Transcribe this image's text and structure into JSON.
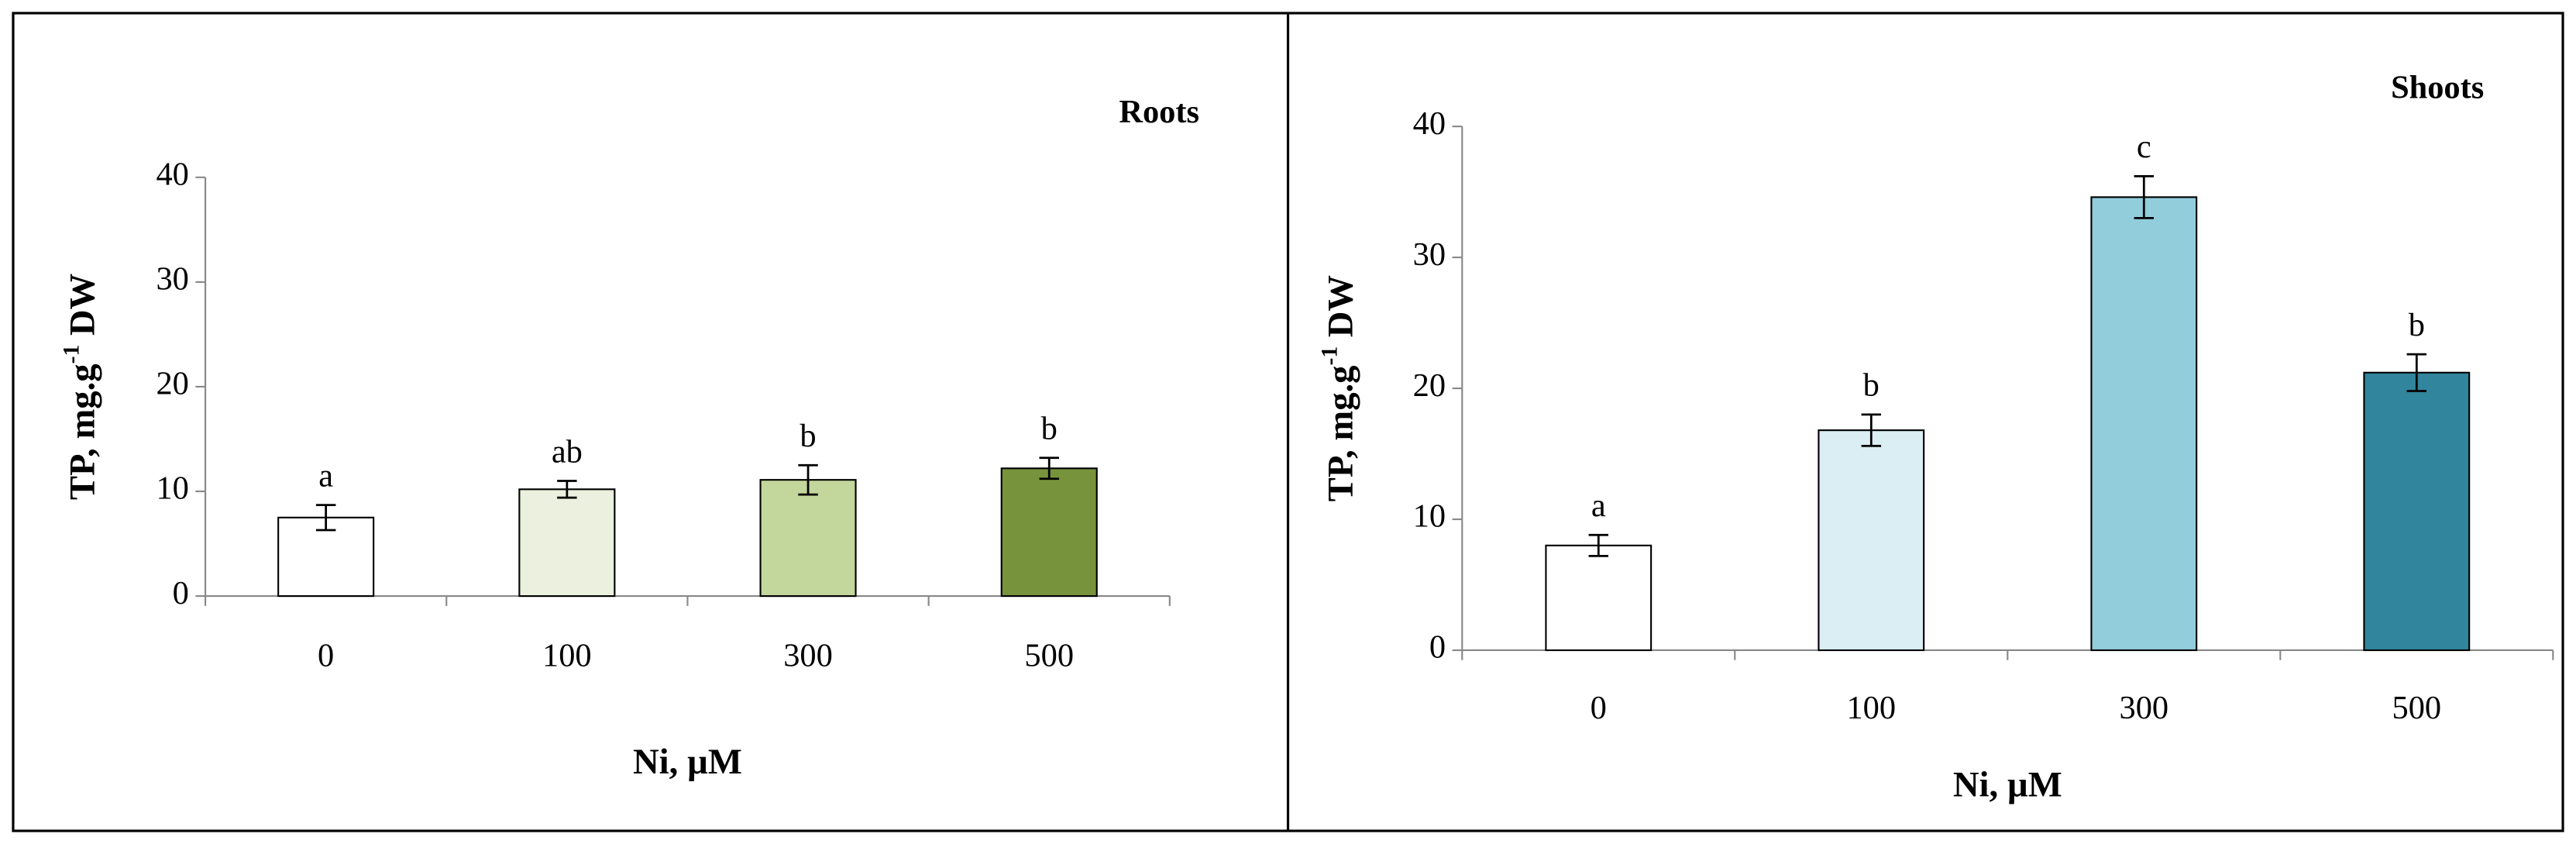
{
  "chart_data": [
    {
      "type": "bar",
      "title": "Roots",
      "x_label": "Ni, µM",
      "y_label": [
        "TP,  mg.g",
        "-1",
        " DW"
      ],
      "categories": [
        "0",
        "100",
        "300",
        "500"
      ],
      "values": [
        7.5,
        10.2,
        11.1,
        12.2
      ],
      "errors": [
        1.2,
        0.8,
        1.4,
        1.0
      ],
      "annotations": [
        "a",
        "ab",
        "b",
        "b"
      ],
      "colors": [
        "#ffffff",
        "#ebf1de",
        "#c3d69b",
        "#77933c"
      ],
      "ylim": [
        0,
        40
      ],
      "yticks": [
        0,
        10,
        20,
        30,
        40
      ],
      "grid": false
    },
    {
      "type": "bar",
      "title": "Shoots",
      "x_label": "Ni, µM",
      "y_label": [
        "TP,  mg.g",
        "-1",
        " DW"
      ],
      "categories": [
        "0",
        "100",
        "300",
        "500"
      ],
      "values": [
        8.0,
        16.8,
        34.6,
        21.2
      ],
      "errors": [
        0.8,
        1.2,
        1.6,
        1.4
      ],
      "annotations": [
        "a",
        "b",
        "c",
        "b"
      ],
      "colors": [
        "#ffffff",
        "#dbeef4",
        "#92cddc",
        "#31859c"
      ],
      "ylim": [
        0,
        40
      ],
      "yticks": [
        0,
        10,
        20,
        30,
        40
      ],
      "grid": false
    }
  ]
}
